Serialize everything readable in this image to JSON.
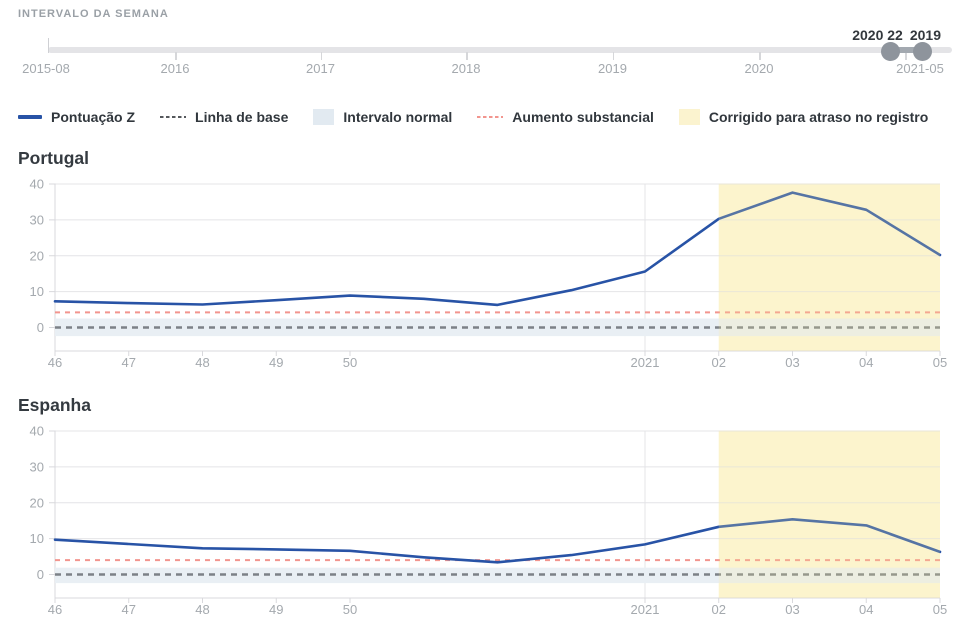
{
  "header": {
    "label": "INTERVALO DA SEMANA"
  },
  "slider": {
    "start_label": "2015-08",
    "end_label": "2021-05",
    "year_ticks": [
      "2016",
      "2017",
      "2018",
      "2019",
      "2020",
      ""
    ],
    "handle_labels": [
      "2020 22",
      "2019"
    ]
  },
  "legend": {
    "items": [
      {
        "label": "Pontuação Z",
        "marker": "line"
      },
      {
        "label": "Linha de base",
        "marker": "dash-dark"
      },
      {
        "label": "Intervalo normal",
        "marker": "band-blue"
      },
      {
        "label": "Aumento substancial",
        "marker": "dash-red"
      },
      {
        "label": "Corrigido para atraso no registro",
        "marker": "band-yellow"
      }
    ]
  },
  "colors": {
    "z_line": "#2853a6",
    "z_line_corrected_seen": "#5876a0",
    "baseline": "#7c8187",
    "substantial_increase": "#f2958e",
    "normal_band": "#e9eff4",
    "corrected_fill": "#fdf7da",
    "corrected_overlay": "rgba(249,237,160,0.22)",
    "legend_band_blue": "#e2eaf1",
    "legend_band_yellow": "#fbf3cf",
    "grid": "#e4e4e7",
    "axis": "#d8d8dc",
    "tick_text": "#a4a9ae"
  },
  "chart_data": [
    {
      "type": "line",
      "title": "Portugal",
      "categories": [
        "2020-46",
        "2020-47",
        "2020-48",
        "2020-49",
        "2020-50",
        "2020-51",
        "2020-52",
        "2020-53",
        "2021-01",
        "2021-02",
        "2021-03",
        "2021-04",
        "2021-05"
      ],
      "x_tick_labels": [
        "46",
        "47",
        "48",
        "49",
        "50",
        "",
        "",
        "",
        "2021",
        "02",
        "03",
        "04",
        "05"
      ],
      "series": [
        {
          "name": "Pontuação Z",
          "values": [
            7.3,
            6.8,
            6.4,
            7.6,
            8.9,
            8.0,
            6.3,
            10.4,
            15.6,
            30.3,
            37.6,
            32.8,
            20.2
          ]
        }
      ],
      "baseline_value": 0,
      "substantial_increase_value": 4.2,
      "normal_range": [
        -2.4,
        2.5
      ],
      "corrected_start_index": 9,
      "ylabel": "",
      "xlabel": "",
      "yticks": [
        0,
        10,
        20,
        30,
        40
      ],
      "ylim": [
        -6.5,
        40.2
      ],
      "grid": "horizontal",
      "legend_position": "top"
    },
    {
      "type": "line",
      "title": "Espanha",
      "categories": [
        "2020-46",
        "2020-47",
        "2020-48",
        "2020-49",
        "2020-50",
        "2020-51",
        "2020-52",
        "2020-53",
        "2021-01",
        "2021-02",
        "2021-03",
        "2021-04",
        "2021-05"
      ],
      "x_tick_labels": [
        "46",
        "47",
        "48",
        "49",
        "50",
        "",
        "",
        "",
        "2021",
        "02",
        "03",
        "04",
        "05"
      ],
      "series": [
        {
          "name": "Pontuação Z",
          "values": [
            9.7,
            8.5,
            7.3,
            7.0,
            6.6,
            4.8,
            3.4,
            5.4,
            8.4,
            13.3,
            15.4,
            13.7,
            6.3
          ]
        }
      ],
      "baseline_value": 0,
      "substantial_increase_value": 4.0,
      "normal_range": [
        -2.4,
        1.9
      ],
      "corrected_start_index": 9,
      "ylabel": "",
      "xlabel": "",
      "yticks": [
        0,
        10,
        20,
        30,
        40
      ],
      "ylim": [
        -6.5,
        40.2
      ],
      "grid": "horizontal",
      "legend_position": "top"
    }
  ]
}
